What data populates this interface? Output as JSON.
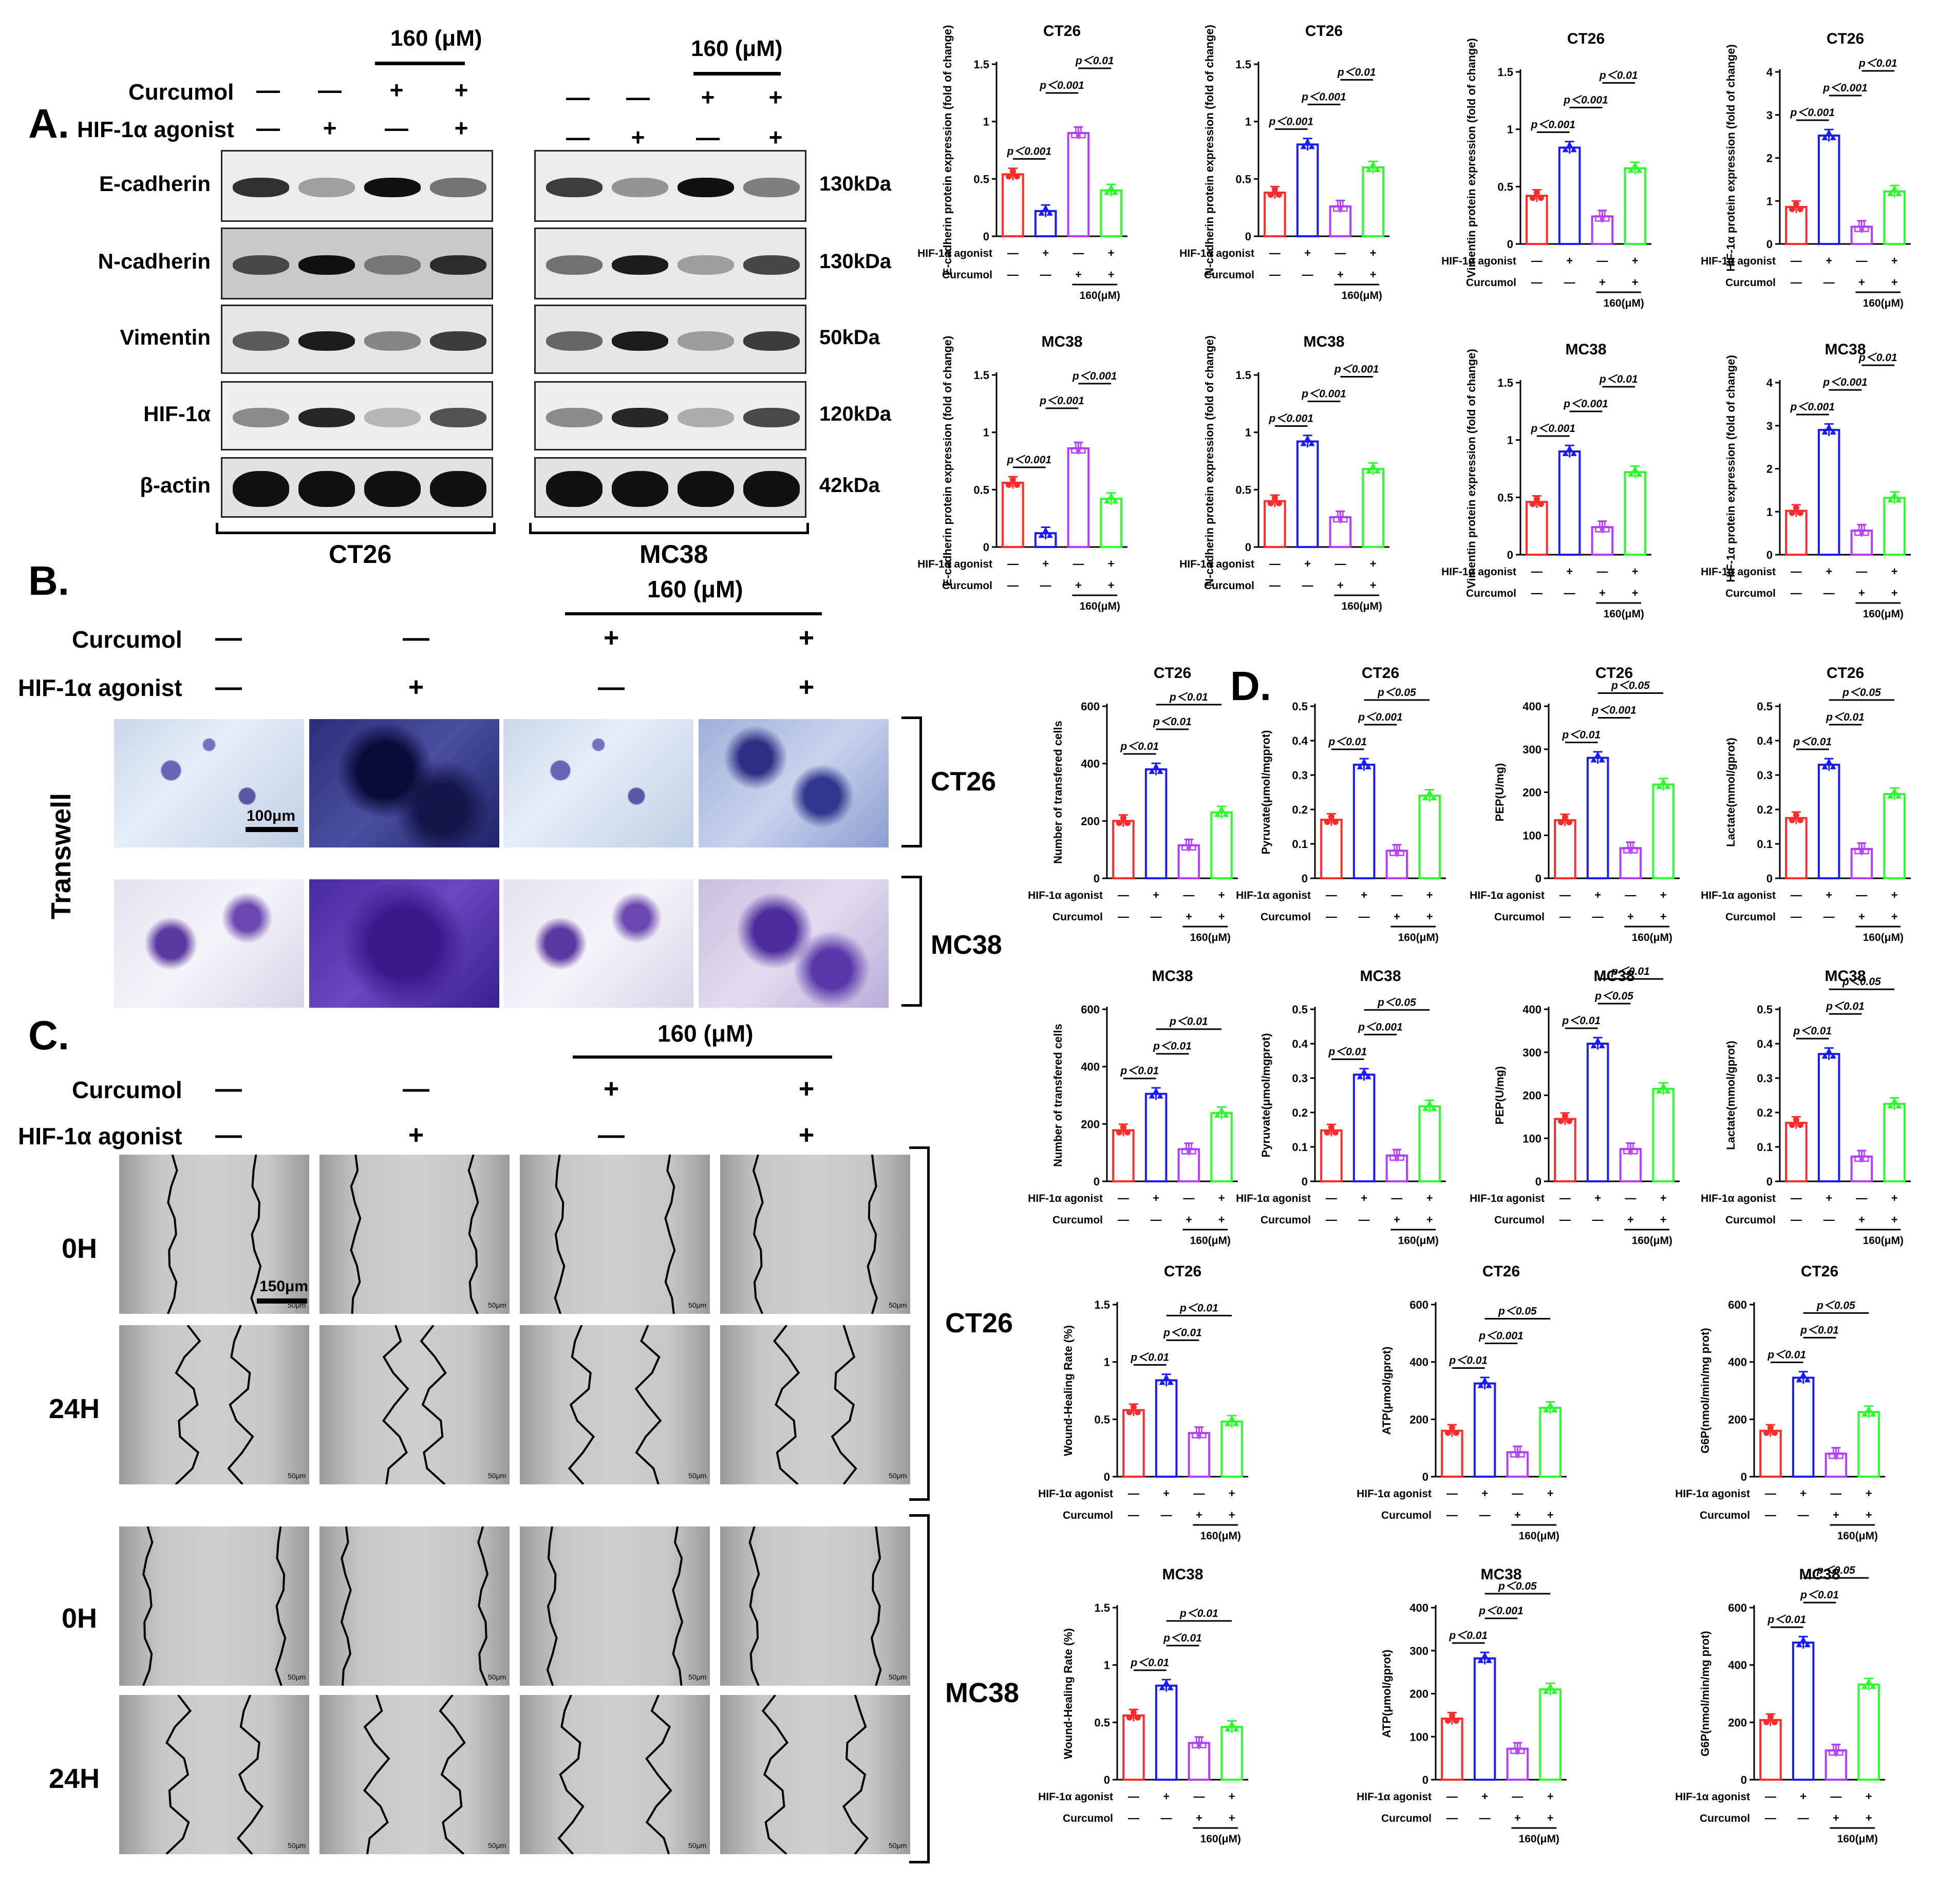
{
  "panels": {
    "A": "A.",
    "B": "B.",
    "C": "C.",
    "D": "D."
  },
  "panelA": {
    "conc_ct26": "160  (μM)",
    "conc_mc38": "160  (μM)",
    "row_curcumol": "Curcumol",
    "row_agonist": "HIF-1α agonist",
    "proteins": [
      "E-cadherin",
      "N-cadherin",
      "Vimentin",
      "HIF-1α",
      "β-actin"
    ],
    "kda": [
      "130kDa",
      "130kDa",
      "50kDa",
      "120kDa",
      "42kDa"
    ],
    "cell_ct26": "CT26",
    "cell_mc38": "MC38"
  },
  "panelB": {
    "conc": "160  (μM)",
    "row_curcumol": "Curcumol",
    "row_agonist": "HIF-1α agonist",
    "side": "Transwell",
    "cell_ct26": "CT26",
    "cell_mc38": "MC38",
    "scale": "100μm"
  },
  "panelC": {
    "conc": "160  (μM)",
    "row_curcumol": "Curcumol",
    "row_agonist": "HIF-1α agonist",
    "t0": "0H",
    "t24": "24H",
    "cell_ct26": "CT26",
    "cell_mc38": "MC38",
    "scale": "150μm",
    "micro_scale": "50μm"
  },
  "signs": {
    "curcumol": [
      "—",
      "—",
      "+",
      "+"
    ],
    "agonist": [
      "—",
      "+",
      "—",
      "+"
    ],
    "axis_curcumol": [
      "—",
      "—",
      "+",
      "+"
    ],
    "axis_agonist": [
      "—",
      "+",
      "—",
      "+"
    ],
    "axis_row_agonist": "HIF-1α agonist",
    "axis_row_curcumol": "Curcumol",
    "axis_conc": "160(μM)"
  },
  "colors": {
    "g1": "#ff2a2a",
    "g2": "#1a1aff",
    "g3": "#b33cff",
    "g4": "#2bff2b"
  },
  "chart_data": [
    {
      "id": "ecad-ct26",
      "type": "bar",
      "title": "CT26",
      "ylabel": "E-cadherin protein expression (fold of change)",
      "ylim": [
        0,
        1.5
      ],
      "yticks": [
        0,
        0.5,
        1.0,
        1.5
      ],
      "values": [
        0.54,
        0.22,
        0.9,
        0.4
      ],
      "comparisons": [
        {
          "a": 0,
          "b": 1,
          "label": "p＜0.001"
        },
        {
          "a": 1,
          "b": 2,
          "label": "p＜0.001"
        },
        {
          "a": 2,
          "b": 3,
          "label": "p＜0.01"
        }
      ]
    },
    {
      "id": "ncad-ct26",
      "type": "bar",
      "title": "CT26",
      "ylabel": "N-cadherin protein expression (fold of change)",
      "ylim": [
        0,
        1.5
      ],
      "yticks": [
        0,
        0.5,
        1.0,
        1.5
      ],
      "values": [
        0.38,
        0.8,
        0.26,
        0.6
      ],
      "comparisons": [
        {
          "a": 0,
          "b": 1,
          "label": "p＜0.001"
        },
        {
          "a": 1,
          "b": 2,
          "label": "p＜0.001"
        },
        {
          "a": 2,
          "b": 3,
          "label": "p＜0.01"
        }
      ]
    },
    {
      "id": "vim-ct26",
      "type": "bar",
      "title": "CT26",
      "ylabel": "Vimentin protein expression (fold of change)",
      "ylim": [
        0,
        1.5
      ],
      "yticks": [
        0,
        0.5,
        1.0,
        1.5
      ],
      "values": [
        0.42,
        0.84,
        0.24,
        0.66
      ],
      "comparisons": [
        {
          "a": 0,
          "b": 1,
          "label": "p＜0.001"
        },
        {
          "a": 1,
          "b": 2,
          "label": "p＜0.001"
        },
        {
          "a": 2,
          "b": 3,
          "label": "p＜0.01"
        }
      ]
    },
    {
      "id": "hif-ct26",
      "type": "bar",
      "title": "CT26",
      "ylabel": "HIF-1α protein expression (fold of change)",
      "ylim": [
        0,
        4
      ],
      "yticks": [
        0,
        1,
        2,
        3,
        4
      ],
      "values": [
        0.86,
        2.52,
        0.4,
        1.22
      ],
      "comparisons": [
        {
          "a": 0,
          "b": 1,
          "label": "p＜0.001"
        },
        {
          "a": 1,
          "b": 2,
          "label": "p＜0.001"
        },
        {
          "a": 2,
          "b": 3,
          "label": "p＜0.01"
        }
      ]
    },
    {
      "id": "ecad-mc38",
      "type": "bar",
      "title": "MC38",
      "ylabel": "E-cadherin protein expression (fold of change)",
      "ylim": [
        0,
        1.5
      ],
      "yticks": [
        0,
        0.5,
        1.0,
        1.5
      ],
      "values": [
        0.56,
        0.12,
        0.86,
        0.42
      ],
      "comparisons": [
        {
          "a": 0,
          "b": 1,
          "label": "p＜0.001"
        },
        {
          "a": 1,
          "b": 2,
          "label": "p＜0.001"
        },
        {
          "a": 2,
          "b": 3,
          "label": "p＜0.001"
        }
      ]
    },
    {
      "id": "ncad-mc38",
      "type": "bar",
      "title": "MC38",
      "ylabel": "N-cadherin protein expression (fold of change)",
      "ylim": [
        0,
        1.5
      ],
      "yticks": [
        0,
        0.5,
        1.0,
        1.5
      ],
      "values": [
        0.4,
        0.92,
        0.26,
        0.68
      ],
      "comparisons": [
        {
          "a": 0,
          "b": 1,
          "label": "p＜0.001"
        },
        {
          "a": 1,
          "b": 2,
          "label": "p＜0.001"
        },
        {
          "a": 2,
          "b": 3,
          "label": "p＜0.001"
        }
      ]
    },
    {
      "id": "vim-mc38",
      "type": "bar",
      "title": "MC38",
      "ylabel": "Vimentin protein expression (fold of change)",
      "ylim": [
        0,
        1.5
      ],
      "yticks": [
        0,
        0.5,
        1.0,
        1.5
      ],
      "values": [
        0.46,
        0.9,
        0.24,
        0.72
      ],
      "comparisons": [
        {
          "a": 0,
          "b": 1,
          "label": "p＜0.001"
        },
        {
          "a": 1,
          "b": 2,
          "label": "p＜0.001"
        },
        {
          "a": 2,
          "b": 3,
          "label": "p＜0.01"
        }
      ]
    },
    {
      "id": "hif-mc38",
      "type": "bar",
      "title": "MC38",
      "ylabel": "HIF-1α protein expression (fold of change)",
      "ylim": [
        0,
        4
      ],
      "yticks": [
        0,
        1,
        2,
        3,
        4
      ],
      "values": [
        1.02,
        2.9,
        0.56,
        1.32
      ],
      "comparisons": [
        {
          "a": 0,
          "b": 1,
          "label": "p＜0.001"
        },
        {
          "a": 1,
          "b": 2,
          "label": "p＜0.001"
        },
        {
          "a": 2,
          "b": 3,
          "label": "p＜0.01"
        }
      ]
    },
    {
      "id": "tw-ct26",
      "type": "bar",
      "title": "CT26",
      "ylabel": "Number of transfered cells",
      "ylim": [
        0,
        600
      ],
      "yticks": [
        0,
        200,
        400,
        600
      ],
      "values": [
        200,
        380,
        115,
        230
      ],
      "comparisons": [
        {
          "a": 0,
          "b": 1,
          "label": "p＜0.01"
        },
        {
          "a": 1,
          "b": 2,
          "label": "p＜0.01"
        },
        {
          "a": 1,
          "b": 3,
          "label": "p＜0.01"
        }
      ]
    },
    {
      "id": "tw-mc38",
      "type": "bar",
      "title": "MC38",
      "ylabel": "Number of transfered cells",
      "ylim": [
        0,
        600
      ],
      "yticks": [
        0,
        200,
        400,
        600
      ],
      "values": [
        178,
        305,
        112,
        238
      ],
      "comparisons": [
        {
          "a": 0,
          "b": 1,
          "label": "p＜0.01"
        },
        {
          "a": 1,
          "b": 2,
          "label": "p＜0.01"
        },
        {
          "a": 1,
          "b": 3,
          "label": "p＜0.01"
        }
      ]
    },
    {
      "id": "pyr-ct26",
      "type": "bar",
      "title": "CT26",
      "ylabel": "Pyruvate(μmol/mgprot)",
      "ylim": [
        0,
        0.5
      ],
      "yticks": [
        0,
        0.1,
        0.2,
        0.3,
        0.4,
        0.5
      ],
      "values": [
        0.17,
        0.33,
        0.08,
        0.24
      ],
      "comparisons": [
        {
          "a": 0,
          "b": 1,
          "label": "p＜0.01"
        },
        {
          "a": 1,
          "b": 2,
          "label": "p＜0.001"
        },
        {
          "a": 1,
          "b": 3,
          "label": "p＜0.05"
        }
      ]
    },
    {
      "id": "pep-ct26",
      "type": "bar",
      "title": "CT26",
      "ylabel": "PEP(U/mg)",
      "ylim": [
        0,
        400
      ],
      "yticks": [
        0,
        100,
        200,
        300,
        400
      ],
      "values": [
        135,
        280,
        70,
        218
      ],
      "comparisons": [
        {
          "a": 0,
          "b": 1,
          "label": "p＜0.01"
        },
        {
          "a": 1,
          "b": 2,
          "label": "p＜0.001"
        },
        {
          "a": 1,
          "b": 3,
          "label": "p＜0.05"
        }
      ]
    },
    {
      "id": "lac-ct26",
      "type": "bar",
      "title": "CT26",
      "ylabel": "Lactate(mmol/gprot)",
      "ylim": [
        0,
        0.5
      ],
      "yticks": [
        0,
        0.1,
        0.2,
        0.3,
        0.4,
        0.5
      ],
      "values": [
        0.175,
        0.33,
        0.085,
        0.245
      ],
      "comparisons": [
        {
          "a": 0,
          "b": 1,
          "label": "p＜0.01"
        },
        {
          "a": 1,
          "b": 2,
          "label": "p＜0.01"
        },
        {
          "a": 1,
          "b": 3,
          "label": "p＜0.05"
        }
      ]
    },
    {
      "id": "pyr-mc38",
      "type": "bar",
      "title": "MC38",
      "ylabel": "Pyruvate(μmol/mgprot)",
      "ylim": [
        0,
        0.5
      ],
      "yticks": [
        0,
        0.1,
        0.2,
        0.3,
        0.4,
        0.5
      ],
      "values": [
        0.148,
        0.31,
        0.075,
        0.218
      ],
      "comparisons": [
        {
          "a": 0,
          "b": 1,
          "label": "p＜0.01"
        },
        {
          "a": 1,
          "b": 2,
          "label": "p＜0.001"
        },
        {
          "a": 1,
          "b": 3,
          "label": "p＜0.05"
        }
      ]
    },
    {
      "id": "pep-mc38",
      "type": "bar",
      "title": "MC38",
      "ylabel": "PEP(U/mg)",
      "ylim": [
        0,
        400
      ],
      "yticks": [
        0,
        100,
        200,
        300,
        400
      ],
      "values": [
        145,
        320,
        75,
        215
      ],
      "comparisons": [
        {
          "a": 0,
          "b": 1,
          "label": "p＜0.01"
        },
        {
          "a": 1,
          "b": 2,
          "label": "p＜0.05"
        },
        {
          "a": 1,
          "b": 3,
          "label": "p＜0.01"
        }
      ]
    },
    {
      "id": "lac-mc38",
      "type": "bar",
      "title": "MC38",
      "ylabel": "Lactate(mmol/gprot)",
      "ylim": [
        0,
        0.5
      ],
      "yticks": [
        0,
        0.1,
        0.2,
        0.3,
        0.4,
        0.5
      ],
      "values": [
        0.17,
        0.37,
        0.072,
        0.225
      ],
      "comparisons": [
        {
          "a": 0,
          "b": 1,
          "label": "p＜0.01"
        },
        {
          "a": 1,
          "b": 2,
          "label": "p＜0.01"
        },
        {
          "a": 1,
          "b": 3,
          "label": "p＜0.05"
        }
      ]
    },
    {
      "id": "wh-ct26",
      "type": "bar",
      "title": "CT26",
      "ylabel": "Wound-Healing Rate (%)",
      "ylim": [
        0,
        1.5
      ],
      "yticks": [
        0,
        0.5,
        1.0,
        1.5
      ],
      "values": [
        0.58,
        0.84,
        0.38,
        0.48
      ],
      "comparisons": [
        {
          "a": 0,
          "b": 1,
          "label": "p＜0.01"
        },
        {
          "a": 1,
          "b": 2,
          "label": "p＜0.01"
        },
        {
          "a": 1,
          "b": 3,
          "label": "p＜0.01"
        }
      ]
    },
    {
      "id": "atp-ct26",
      "type": "bar",
      "title": "CT26",
      "ylabel": "ATP(μmol/gprot)",
      "ylim": [
        0,
        600
      ],
      "yticks": [
        0,
        200,
        400,
        600
      ],
      "values": [
        160,
        325,
        85,
        240
      ],
      "comparisons": [
        {
          "a": 0,
          "b": 1,
          "label": "p＜0.01"
        },
        {
          "a": 1,
          "b": 2,
          "label": "p＜0.001"
        },
        {
          "a": 1,
          "b": 3,
          "label": "p＜0.05"
        }
      ]
    },
    {
      "id": "g6p-ct26",
      "type": "bar",
      "title": "CT26",
      "ylabel": "G6P(nmol/min/mg prot)",
      "ylim": [
        0,
        600
      ],
      "yticks": [
        0,
        200,
        400,
        600
      ],
      "values": [
        160,
        345,
        80,
        225
      ],
      "comparisons": [
        {
          "a": 0,
          "b": 1,
          "label": "p＜0.01"
        },
        {
          "a": 1,
          "b": 2,
          "label": "p＜0.01"
        },
        {
          "a": 1,
          "b": 3,
          "label": "p＜0.05"
        }
      ]
    },
    {
      "id": "wh-mc38",
      "type": "bar",
      "title": "MC38",
      "ylabel": "Wound-Healing Rate (%)",
      "ylim": [
        0,
        1.5
      ],
      "yticks": [
        0,
        0.5,
        1.0,
        1.5
      ],
      "values": [
        0.56,
        0.82,
        0.32,
        0.46
      ],
      "comparisons": [
        {
          "a": 0,
          "b": 1,
          "label": "p＜0.01"
        },
        {
          "a": 1,
          "b": 2,
          "label": "p＜0.01"
        },
        {
          "a": 1,
          "b": 3,
          "label": "p＜0.01"
        }
      ]
    },
    {
      "id": "atp-mc38",
      "type": "bar",
      "title": "MC38",
      "ylabel": "ATP(μmol/gprot)",
      "ylim": [
        0,
        400
      ],
      "yticks": [
        0,
        100,
        200,
        300,
        400
      ],
      "values": [
        142,
        282,
        72,
        210
      ],
      "comparisons": [
        {
          "a": 0,
          "b": 1,
          "label": "p＜0.01"
        },
        {
          "a": 1,
          "b": 2,
          "label": "p＜0.001"
        },
        {
          "a": 1,
          "b": 3,
          "label": "p＜0.05"
        }
      ]
    },
    {
      "id": "g6p-mc38",
      "type": "bar",
      "title": "MC38",
      "ylabel": "G6P(nmol/min/mg prot)",
      "ylim": [
        0,
        600
      ],
      "yticks": [
        0,
        200,
        400,
        600
      ],
      "values": [
        208,
        478,
        102,
        332
      ],
      "comparisons": [
        {
          "a": 0,
          "b": 1,
          "label": "p＜0.01"
        },
        {
          "a": 1,
          "b": 2,
          "label": "p＜0.01"
        },
        {
          "a": 1,
          "b": 3,
          "label": "p＜0.05"
        }
      ]
    }
  ]
}
